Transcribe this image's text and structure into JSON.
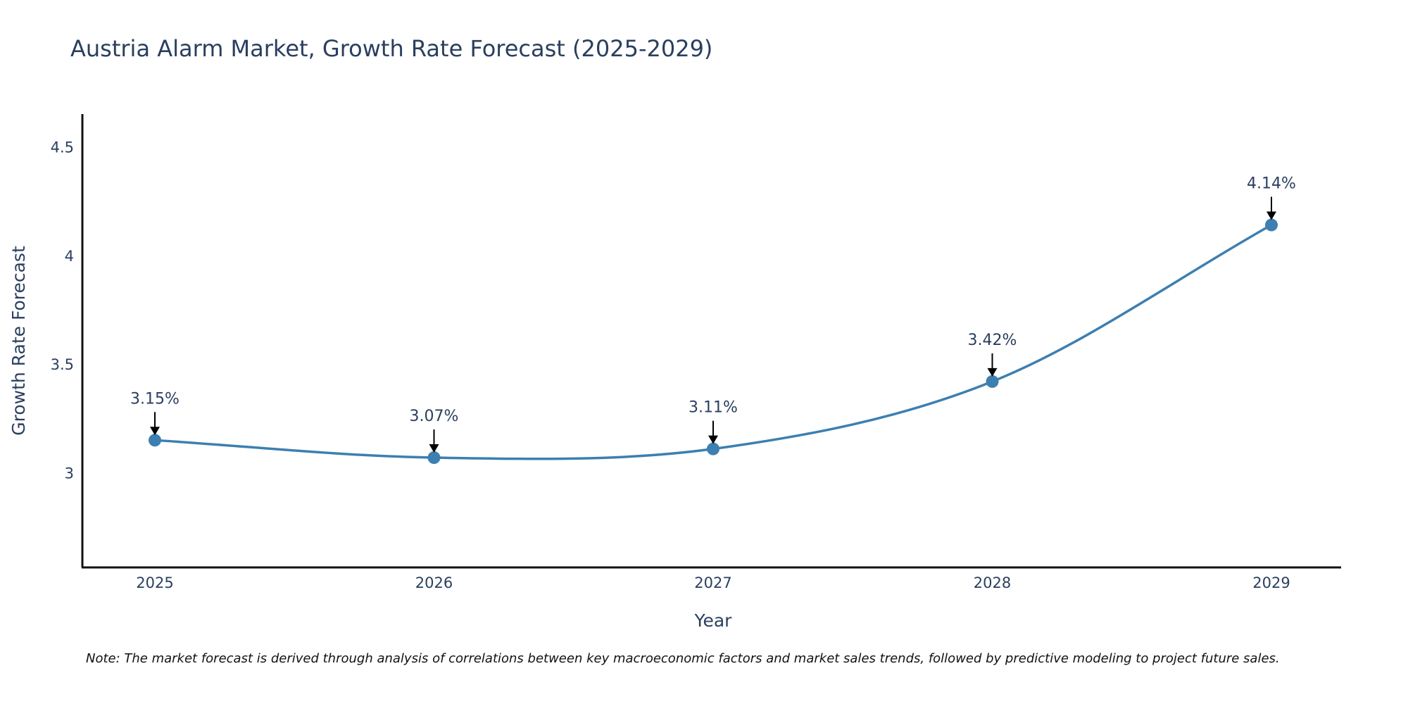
{
  "chart_data": {
    "type": "line",
    "title": "Austria Alarm Market, Growth Rate Forecast (2025-2029)",
    "xlabel": "Year",
    "ylabel": "Growth Rate Forecast",
    "categories": [
      "2025",
      "2026",
      "2027",
      "2028",
      "2029"
    ],
    "values": [
      3.15,
      3.07,
      3.11,
      3.42,
      4.14
    ],
    "data_labels": [
      "3.15%",
      "3.07%",
      "3.11%",
      "3.42%",
      "4.14%"
    ],
    "y_ticks": [
      3,
      3.5,
      4,
      4.5
    ],
    "y_tick_labels": [
      "3",
      "3.5",
      "4",
      "4.5"
    ],
    "ylim": [
      2.565,
      4.65
    ],
    "grid": false,
    "line_color": "#3d7fb0",
    "marker_color": "#3d7fb0",
    "note": "Note: The market forecast is derived through analysis of correlations between key macroeconomic factors and market sales trends, followed by predictive modeling to project future sales."
  }
}
